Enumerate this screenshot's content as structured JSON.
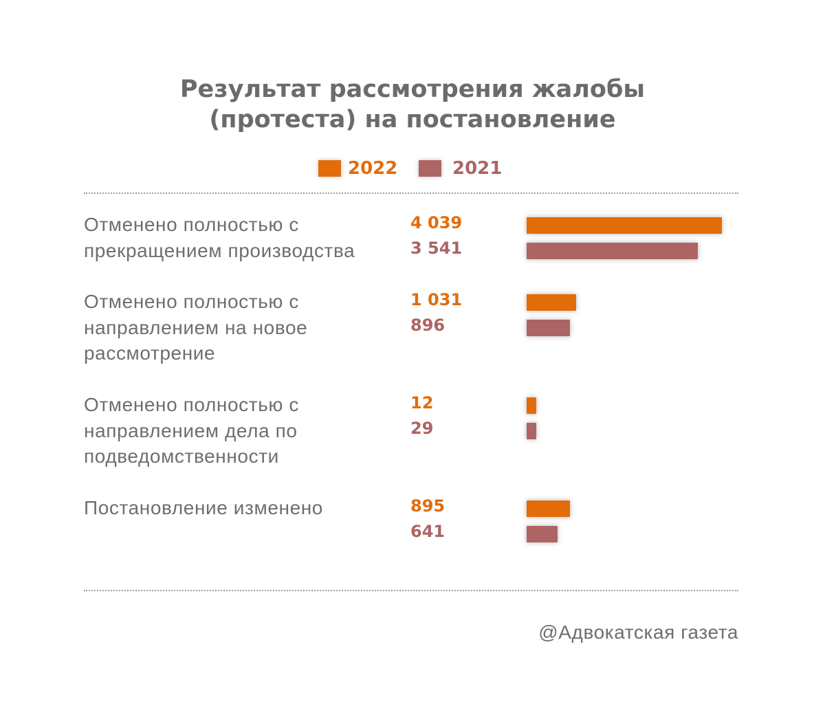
{
  "colors": {
    "series_2022": "#e36c0a",
    "series_2021": "#ad6464",
    "text": "#6e6e6e",
    "title": "#6b6b6b"
  },
  "chart_data": {
    "type": "bar",
    "orientation": "horizontal",
    "title_lines": [
      "Результат рассмотрения жалобы",
      "(протеста) на постановление"
    ],
    "categories": [
      [
        "Отменено полностью с",
        "прекращением производства"
      ],
      [
        "Отменено полностью с",
        "направлением на новое",
        "рассмотрение"
      ],
      [
        "Отменено полностью с",
        "направлением дела по",
        "подведомственности"
      ],
      [
        "Постановление изменено"
      ]
    ],
    "series": [
      {
        "name": "2022",
        "values": [
          4039,
          1031,
          12,
          895
        ],
        "labels": [
          "4 039",
          "1 031",
          "12",
          "895"
        ]
      },
      {
        "name": "2021",
        "values": [
          3541,
          896,
          29,
          641
        ],
        "labels": [
          "3 541",
          "896",
          "29",
          "641"
        ]
      }
    ],
    "legend_position": "top",
    "grid": false
  },
  "source": "@Адвокатская газета"
}
